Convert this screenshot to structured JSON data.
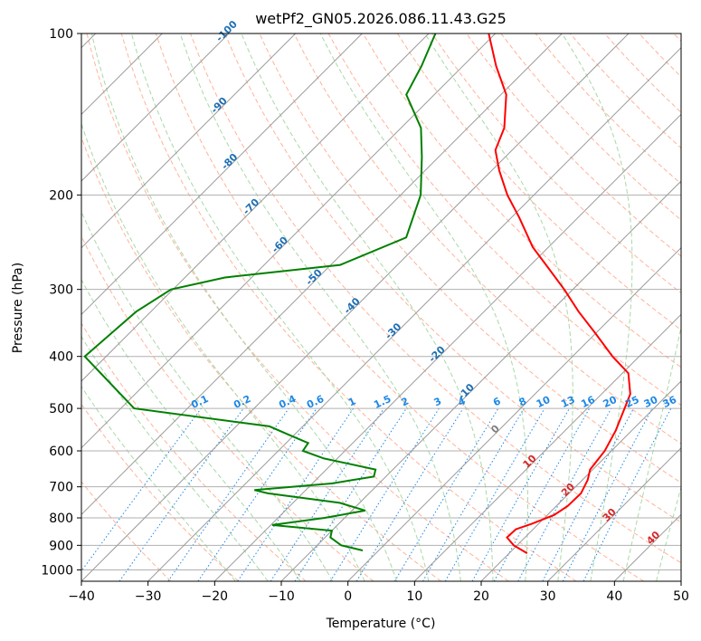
{
  "chart_data": {
    "type": "line",
    "subtype": "skew-t log-p diagram",
    "title": "wetPf2_GN05.2026.086.11.43.G25",
    "xlabel": "Temperature (°C)",
    "ylabel": "Pressure (hPa)",
    "xlim": [
      -40,
      50
    ],
    "ylim": [
      1050,
      100
    ],
    "y_scale": "log",
    "grid": true,
    "x_ticks": [
      -40,
      -30,
      -20,
      -10,
      0,
      10,
      20,
      30,
      40,
      50
    ],
    "y_ticks": [
      100,
      200,
      300,
      400,
      500,
      600,
      700,
      800,
      900,
      1000
    ],
    "series": [
      {
        "name": "",
        "color": "#ff0000",
        "points": [
          {
            "p": 931,
            "t": 22.7
          },
          {
            "p": 900,
            "t": 19.5
          },
          {
            "p": 870,
            "t": 17.3
          },
          {
            "p": 840,
            "t": 17.4
          },
          {
            "p": 820,
            "t": 19.0
          },
          {
            "p": 790,
            "t": 21.0
          },
          {
            "p": 760,
            "t": 21.7
          },
          {
            "p": 720,
            "t": 21.8
          },
          {
            "p": 680,
            "t": 20.8
          },
          {
            "p": 650,
            "t": 19.6
          },
          {
            "p": 600,
            "t": 19.0
          },
          {
            "p": 550,
            "t": 17.6
          },
          {
            "p": 500,
            "t": 15.6
          },
          {
            "p": 470,
            "t": 14.3
          },
          {
            "p": 430,
            "t": 10.9
          },
          {
            "p": 400,
            "t": 6.0
          },
          {
            "p": 360,
            "t": -0.4
          },
          {
            "p": 330,
            "t": -5.8
          },
          {
            "p": 300,
            "t": -11.3
          },
          {
            "p": 270,
            "t": -17.7
          },
          {
            "p": 250,
            "t": -22.4
          },
          {
            "p": 220,
            "t": -28.9
          },
          {
            "p": 200,
            "t": -34.0
          },
          {
            "p": 180,
            "t": -38.9
          },
          {
            "p": 165,
            "t": -42.5
          },
          {
            "p": 150,
            "t": -44.5
          },
          {
            "p": 130,
            "t": -49.2
          },
          {
            "p": 115,
            "t": -55.0
          },
          {
            "p": 100,
            "t": -61.0
          }
        ]
      },
      {
        "name": "",
        "color": "#008000",
        "points": [
          {
            "p": 920,
            "t": -2.4
          },
          {
            "p": 900,
            "t": -6.4
          },
          {
            "p": 870,
            "t": -9.2
          },
          {
            "p": 845,
            "t": -10.0
          },
          {
            "p": 825,
            "t": -19.8
          },
          {
            "p": 800,
            "t": -13.0
          },
          {
            "p": 775,
            "t": -8.0
          },
          {
            "p": 750,
            "t": -13.0
          },
          {
            "p": 720,
            "t": -25.2
          },
          {
            "p": 710,
            "t": -27.7
          },
          {
            "p": 690,
            "t": -17.1
          },
          {
            "p": 670,
            "t": -11.8
          },
          {
            "p": 650,
            "t": -12.6
          },
          {
            "p": 620,
            "t": -22.0
          },
          {
            "p": 600,
            "t": -26.3
          },
          {
            "p": 580,
            "t": -26.7
          },
          {
            "p": 560,
            "t": -30.8
          },
          {
            "p": 540,
            "t": -35.0
          },
          {
            "p": 500,
            "t": -58.0
          },
          {
            "p": 400,
            "t": -73.2
          },
          {
            "p": 330,
            "t": -72.2
          },
          {
            "p": 300,
            "t": -70.3
          },
          {
            "p": 285,
            "t": -64.0
          },
          {
            "p": 270,
            "t": -48.6
          },
          {
            "p": 240,
            "t": -42.8
          },
          {
            "p": 200,
            "t": -47.0
          },
          {
            "p": 170,
            "t": -52.5
          },
          {
            "p": 150,
            "t": -57.0
          },
          {
            "p": 130,
            "t": -64.2
          },
          {
            "p": 115,
            "t": -66.2
          },
          {
            "p": 100,
            "t": -69.0
          }
        ]
      }
    ],
    "isotherm_labels": [
      "-100",
      "-90",
      "-80",
      "-70",
      "-60",
      "-50",
      "-40",
      "-30",
      "-20",
      "-10",
      "0",
      "10",
      "20",
      "30",
      "40"
    ],
    "mixing_ratio_labels": [
      "0.1",
      "0.2",
      "0.4",
      "0.6",
      "1",
      "1.5",
      "2",
      "3",
      "4",
      "6",
      "8",
      "10",
      "13",
      "16",
      "20",
      "25",
      "30",
      "36"
    ],
    "colors": {
      "isobar": "#b0b0b0",
      "isotherm": "#9a9a9a",
      "dry_adiabat": "#ffb399",
      "moist_adiabat": "#a8d8a8",
      "mixing_ratio": "#1e88e5",
      "isotherm_label_neg": "#1f6fb4",
      "isotherm_label_zero": "#808080",
      "isotherm_label_pos": "#d62728",
      "temperature": "#ff0000",
      "dewpoint": "#008000"
    }
  }
}
